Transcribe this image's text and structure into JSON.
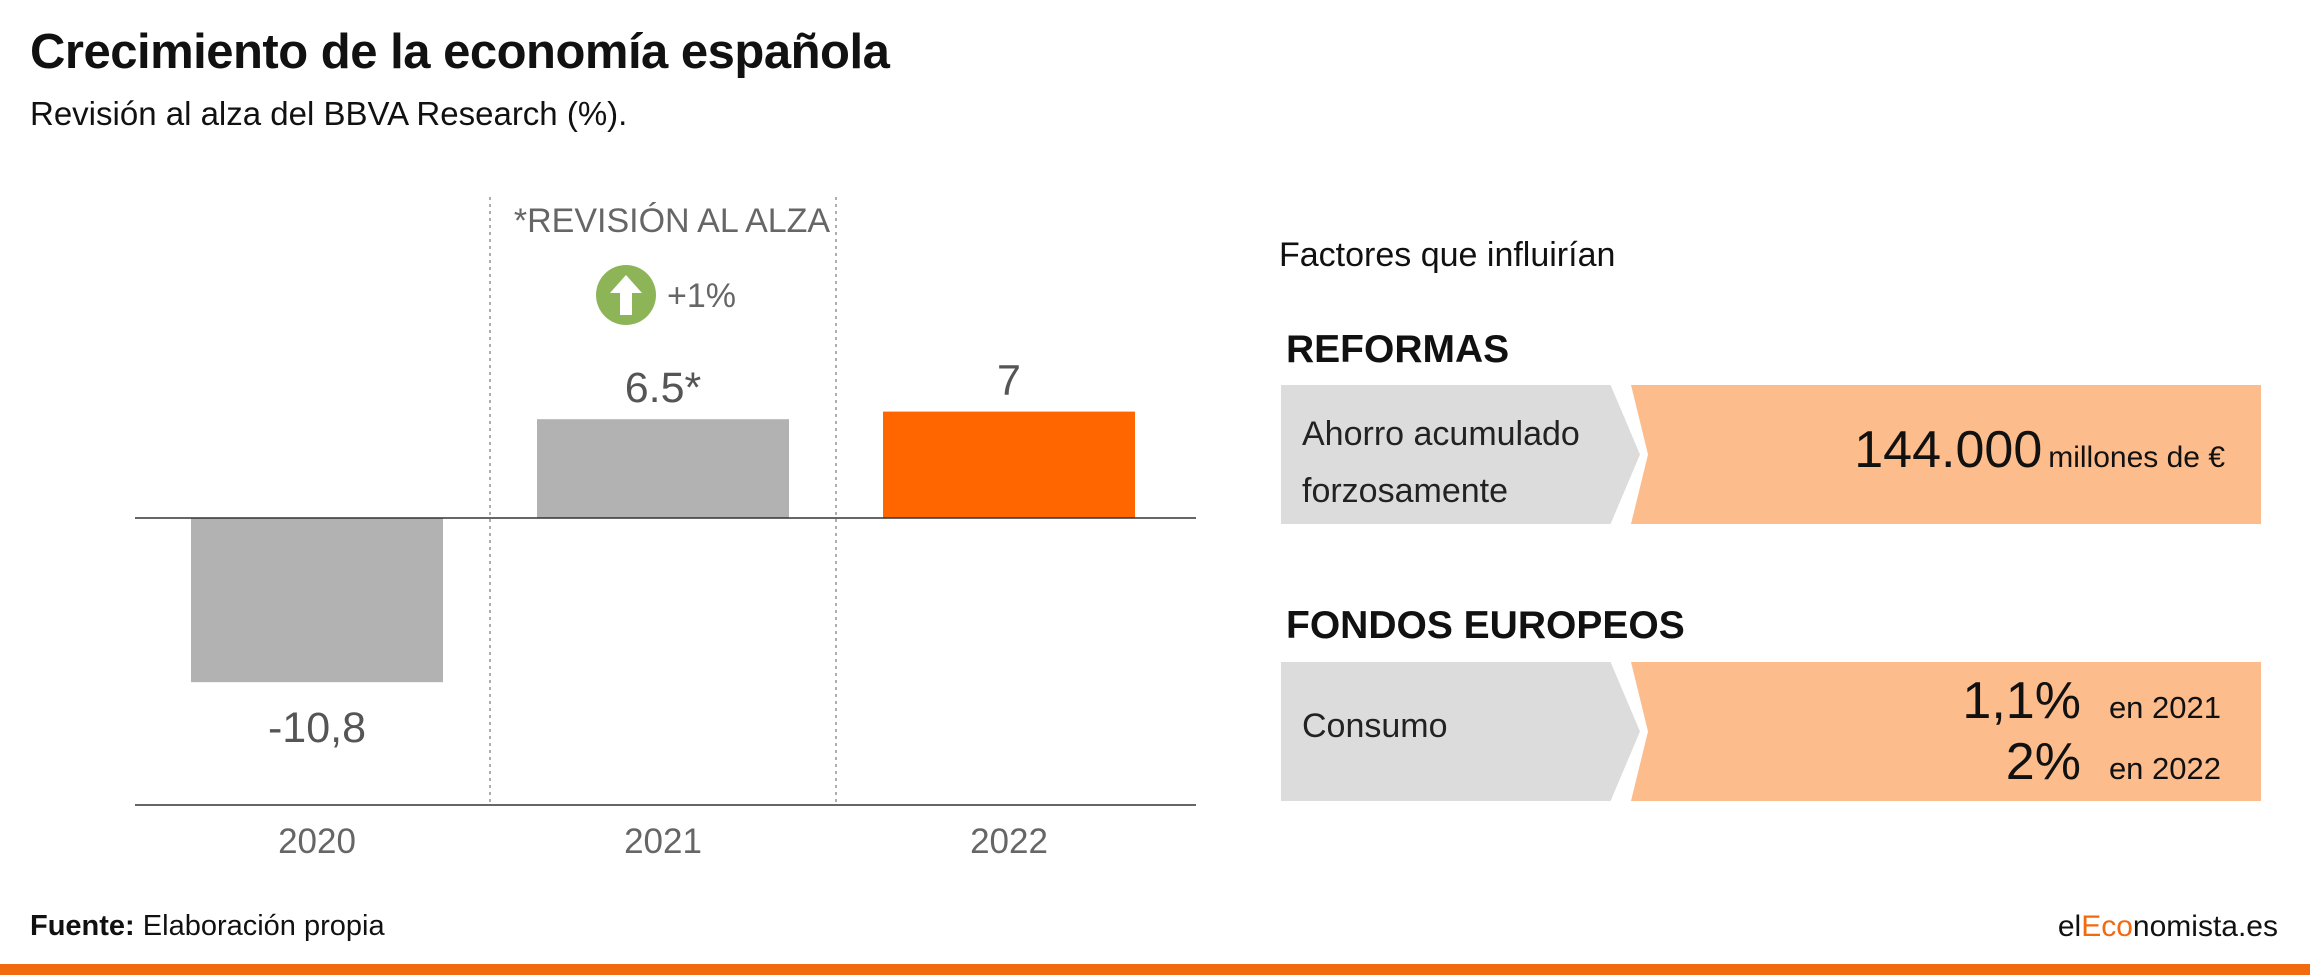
{
  "title": "Crecimiento de la economía española",
  "subtitle": "Revisión al alza del BBVA Research (%).",
  "chart_data": {
    "type": "bar",
    "categories": [
      "2020",
      "2021",
      "2022"
    ],
    "values": [
      -10.8,
      6.5,
      7
    ],
    "value_labels": [
      "-10,8",
      "6.5*",
      "7"
    ],
    "bar_colors": [
      "#b2b2b2",
      "#b2b2b2",
      "#ff6600"
    ],
    "ylim": [
      -15,
      10
    ],
    "grid": false,
    "annotation": {
      "label": "*REVISIÓN AL ALZA",
      "change": "+1%",
      "icon": "arrow-up-circle-icon",
      "icon_color": "#8db558"
    }
  },
  "factors": {
    "heading": "Factores que influirían",
    "reformas": {
      "heading": "REFORMAS",
      "label": "Ahorro acumulado forzosamente",
      "value": "144.000",
      "unit": "millones de €"
    },
    "fondos": {
      "heading": "FONDOS EUROPEOS",
      "label": "Consumo",
      "rows": [
        {
          "value": "1,1%",
          "year": "en 2021"
        },
        {
          "value": "2%",
          "year": "en 2022"
        }
      ]
    },
    "grey_color": "#dcdcdc",
    "accent_color": "#fcbc8c"
  },
  "footer": {
    "source_label": "Fuente:",
    "source_text": "Elaboración propia",
    "brand_prefix": "el",
    "brand_accent": "Eco",
    "brand_suffix": "nomista.es",
    "brand_color": "#f26a10"
  }
}
